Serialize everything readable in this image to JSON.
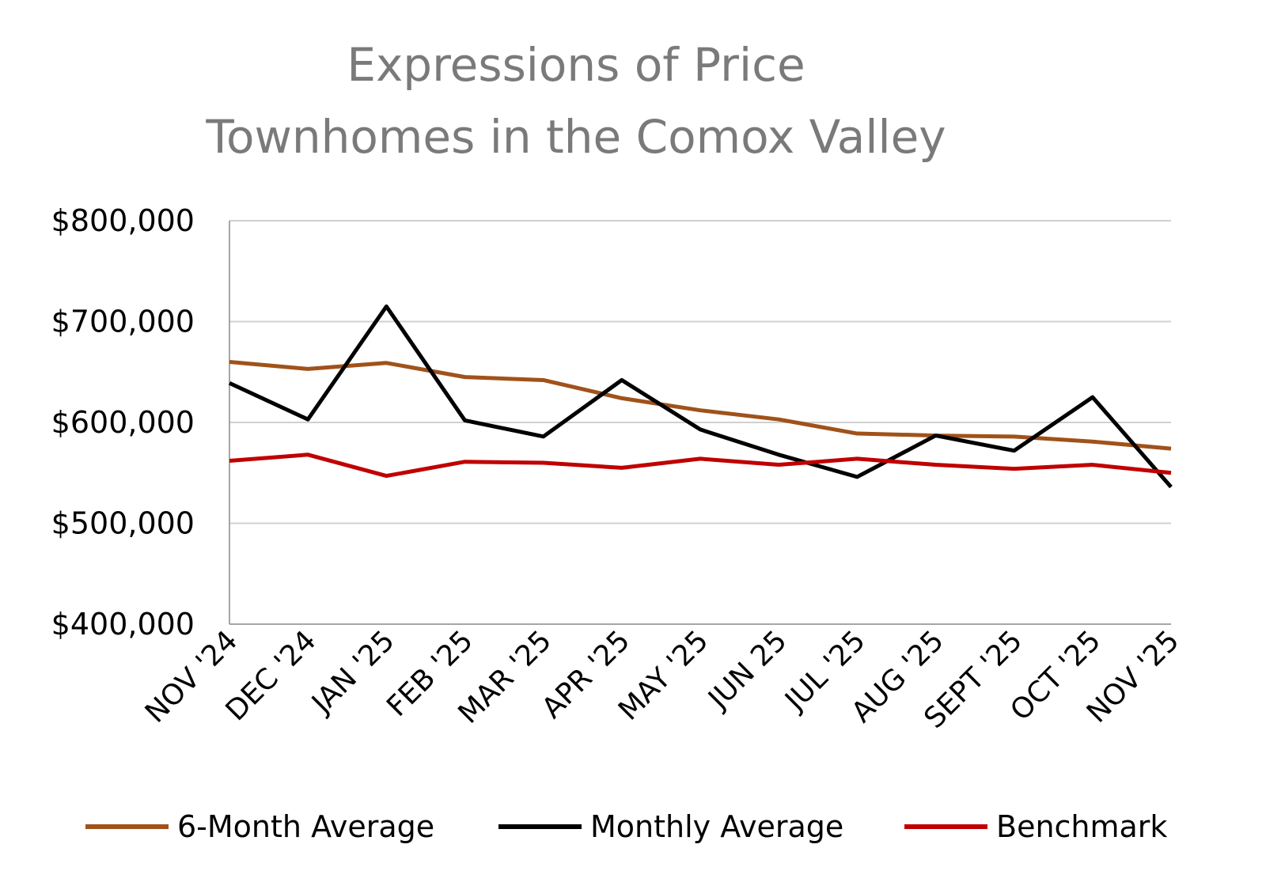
{
  "chart_data": {
    "type": "line",
    "title": [
      "Expressions of Price",
      "Townhomes in  the Comox Valley"
    ],
    "categories": [
      "NOV '24",
      "DEC '24",
      "JAN '25",
      "FEB '25",
      "MAR '25",
      "APR '25",
      "MAY '25",
      "JUN 25",
      "JUL '25",
      "AUG '25",
      "SEPT '25",
      "OCT '25",
      "NOV '25"
    ],
    "ylim": [
      400000,
      800000
    ],
    "yticks": [
      400000,
      500000,
      600000,
      700000,
      800000
    ],
    "ytick_labels": [
      "$400,000",
      "$500,000",
      "$600,000",
      "$700,000",
      "$800,000"
    ],
    "grid": true,
    "legend_position": "bottom",
    "series": [
      {
        "name": "6-Month Average",
        "color": "#a0521a",
        "values": [
          660000,
          653000,
          659000,
          645000,
          642000,
          624000,
          612000,
          603000,
          589000,
          587000,
          586000,
          581000,
          574000
        ]
      },
      {
        "name": "Monthly Average",
        "color": "#000000",
        "values": [
          639000,
          603000,
          715000,
          602000,
          586000,
          642000,
          593000,
          568000,
          546000,
          587000,
          572000,
          625000,
          536000
        ]
      },
      {
        "name": "Benchmark",
        "color": "#c00000",
        "values": [
          562000,
          568000,
          547000,
          561000,
          560000,
          555000,
          564000,
          558000,
          564000,
          558000,
          554000,
          558000,
          550000
        ]
      }
    ]
  }
}
